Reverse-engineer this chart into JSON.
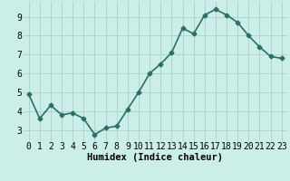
{
  "x": [
    0,
    1,
    2,
    3,
    4,
    5,
    6,
    7,
    8,
    9,
    10,
    11,
    12,
    13,
    14,
    15,
    16,
    17,
    18,
    19,
    20,
    21,
    22,
    23
  ],
  "y": [
    4.9,
    3.6,
    4.3,
    3.8,
    3.9,
    3.6,
    2.75,
    3.1,
    3.2,
    4.1,
    5.0,
    6.0,
    6.5,
    7.1,
    8.4,
    8.1,
    9.1,
    9.4,
    9.1,
    8.7,
    8.0,
    7.4,
    6.9,
    6.8
  ],
  "line_color": "#2d6e65",
  "marker": "D",
  "marker_size": 2.5,
  "bg_color": "#cceee8",
  "grid_color": "#aed4ce",
  "xlabel": "Humidex (Indice chaleur)",
  "xlabel_fontsize": 7.5,
  "ylabel_ticks": [
    3,
    4,
    5,
    6,
    7,
    8,
    9
  ],
  "ylim": [
    2.4,
    9.8
  ],
  "xlim": [
    -0.5,
    23.5
  ],
  "tick_fontsize": 7,
  "line_width": 1.2
}
